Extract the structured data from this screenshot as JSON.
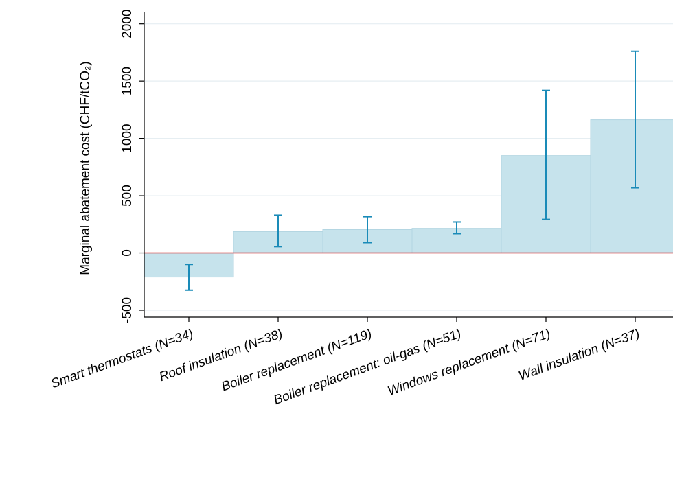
{
  "chart_data": {
    "type": "bar",
    "y_label": "Marginal abatement cost (CHF/tCO₂)",
    "categories": [
      "Smart thermostats (N=34)",
      "Roof insulation (N=38)",
      "Boiler replacement (N=119)",
      "Boiler replacement: oil-gas (N=51)",
      "Windows replacement (N=71)",
      "Wall insulation (N=37)"
    ],
    "values": [
      -210,
      186,
      204,
      215,
      850,
      1162
    ],
    "ci_low": [
      -325,
      55,
      90,
      168,
      293,
      569
    ],
    "ci_high": [
      -100,
      330,
      317,
      270,
      1419,
      1760
    ],
    "color": "#c6e3ec",
    "error_color": "#1a8bb8",
    "reference_line": 0,
    "reference_color": "#d62728",
    "ylim": [
      -560,
      2100
    ],
    "yticks": [
      -500,
      0,
      500,
      1000,
      1500,
      2000
    ],
    "grid": true
  }
}
